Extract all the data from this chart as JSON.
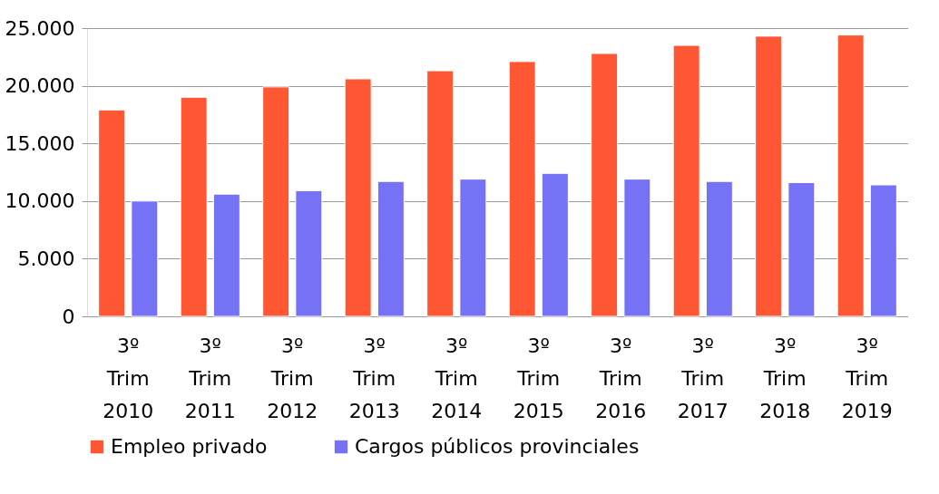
{
  "chart_data": {
    "type": "bar",
    "categories": [
      "3º Trim 2010",
      "3º Trim 2011",
      "3º Trim 2012",
      "3º Trim 2013",
      "3º Trim 2014",
      "3º Trim 2015",
      "3º Trim 2016",
      "3º Trim 2017",
      "3º Trim 2018",
      "3º Trim 2019"
    ],
    "series": [
      {
        "name": "Empleo privado",
        "color": "#ff5733",
        "values": [
          17900,
          19000,
          19900,
          20600,
          21300,
          22100,
          22800,
          23500,
          24300,
          24400
        ]
      },
      {
        "name": "Cargos públicos provinciales",
        "color": "#7672f5",
        "values": [
          10000,
          10600,
          10900,
          11700,
          11900,
          12400,
          11900,
          11700,
          11600,
          11400
        ]
      }
    ],
    "ylim": [
      0,
      25000
    ],
    "yticks": [
      {
        "value": 0,
        "label": "0"
      },
      {
        "value": 5000,
        "label": "5.000"
      },
      {
        "value": 10000,
        "label": "10.000"
      },
      {
        "value": 15000,
        "label": "15.000"
      },
      {
        "value": 20000,
        "label": "20.000"
      },
      {
        "value": 25000,
        "label": "25.000"
      }
    ],
    "grid": "y",
    "legend": "bottom"
  }
}
